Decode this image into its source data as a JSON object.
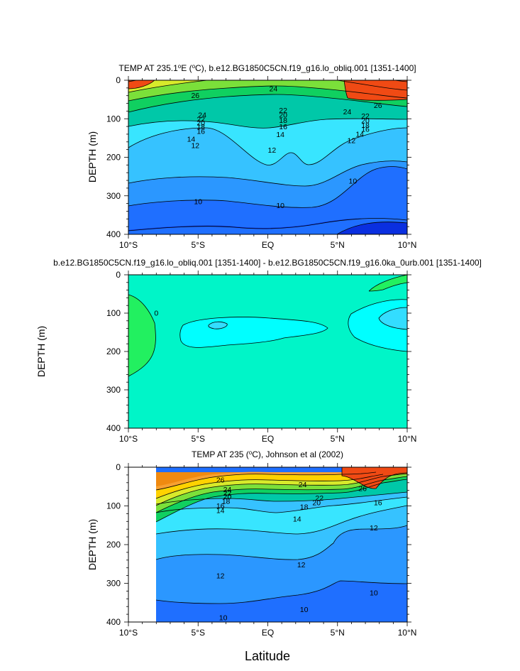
{
  "figure": {
    "x_axis_label": "Latitude",
    "colors": {
      "c_lt10": "#0a2fe0",
      "c_10_11": "#1f6fff",
      "c_11_12": "#2b97ff",
      "c_12_13": "#36c2ff",
      "c_13_14": "#38e5ff",
      "c_14_16": "#00c8a8",
      "c_16_18": "#10d060",
      "c_18_20": "#7be03a",
      "c_20_22": "#d8ea2b",
      "c_22_24": "#ffd200",
      "c_24_26": "#f8a030",
      "c_26_28": "#f08a10",
      "c_gt28": "#f04a14",
      "diff_base": "#00f5c8",
      "diff_neg1": "#00ffff",
      "diff_neg2": "#33ddff",
      "diff_pos": "#22f060",
      "contour": "#000000"
    }
  },
  "chart_data": [
    {
      "type": "contour",
      "title": "TEMP AT 235.1°E (°C), b.e12.BG1850C5CN.f19_g16.lo_obliq.001 [1351-1400]",
      "title_parts": {
        "pre": "TEMP AT 235.1",
        "sup1": "o",
        "mid": "E (",
        "sup2": "o",
        "post": "C), b.e12.BG1850C5CN.f19_g16.lo_obliq.001 [1351-1400]"
      },
      "xlabel": "",
      "ylabel": "DEPTH (m)",
      "xlim": [
        -10,
        10
      ],
      "ylim": [
        0,
        400
      ],
      "x_ticks": [
        -10,
        -5,
        0,
        5,
        10
      ],
      "x_tick_labels": [
        "10°S",
        "5°S",
        "EQ",
        "5°N",
        "10°N"
      ],
      "y_ticks": [
        0,
        100,
        200,
        300,
        400
      ],
      "y_tick_labels": [
        "0",
        "100",
        "200",
        "300",
        "400"
      ],
      "contour_levels": [
        10,
        11,
        12,
        13,
        14,
        16,
        18,
        20,
        22,
        24,
        26,
        28
      ],
      "contour_labels": [
        {
          "text": "26",
          "lat": -5.2,
          "depth": 40
        },
        {
          "text": "24",
          "lat": 0.4,
          "depth": 22
        },
        {
          "text": "26",
          "lat": 7.9,
          "depth": 65
        },
        {
          "text": "24",
          "lat": -4.7,
          "depth": 90
        },
        {
          "text": "22",
          "lat": -4.8,
          "depth": 101
        },
        {
          "text": "20",
          "lat": -4.8,
          "depth": 111
        },
        {
          "text": "18",
          "lat": -4.8,
          "depth": 121
        },
        {
          "text": "16",
          "lat": -4.8,
          "depth": 133
        },
        {
          "text": "14",
          "lat": -5.5,
          "depth": 153
        },
        {
          "text": "12",
          "lat": -5.2,
          "depth": 170
        },
        {
          "text": "22",
          "lat": 1.1,
          "depth": 78
        },
        {
          "text": "20",
          "lat": 1.1,
          "depth": 90
        },
        {
          "text": "18",
          "lat": 1.1,
          "depth": 104
        },
        {
          "text": "16",
          "lat": 1.1,
          "depth": 121
        },
        {
          "text": "14",
          "lat": 0.9,
          "depth": 141
        },
        {
          "text": "12",
          "lat": 0.3,
          "depth": 182
        },
        {
          "text": "24",
          "lat": 5.7,
          "depth": 82
        },
        {
          "text": "22",
          "lat": 7.0,
          "depth": 93
        },
        {
          "text": "20",
          "lat": 7.0,
          "depth": 105
        },
        {
          "text": "18",
          "lat": 7.0,
          "depth": 117
        },
        {
          "text": "16",
          "lat": 7.0,
          "depth": 127
        },
        {
          "text": "14",
          "lat": 6.6,
          "depth": 140
        },
        {
          "text": "12",
          "lat": 6.0,
          "depth": 157
        },
        {
          "text": "10",
          "lat": -5.0,
          "depth": 315
        },
        {
          "text": "10",
          "lat": 0.9,
          "depth": 325
        },
        {
          "text": "10",
          "lat": 6.1,
          "depth": 262
        }
      ]
    },
    {
      "type": "contour",
      "title": "b.e12.BG1850C5CN.f19_g16.lo_obliq.001 [1351-1400] - b.e12.BG1850C5CN.f19_g16.0ka_0urb.001 [1351-1400]",
      "xlabel": "",
      "ylabel": "DEPTH (m)",
      "xlim": [
        -10,
        10
      ],
      "ylim": [
        0,
        400
      ],
      "x_ticks": [
        -10,
        -5,
        0,
        5,
        10
      ],
      "x_tick_labels": [
        "10°S",
        "5°S",
        "EQ",
        "5°N",
        "10°N"
      ],
      "y_ticks": [
        0,
        100,
        200,
        300,
        400
      ],
      "y_tick_labels": [
        "0",
        "100",
        "200",
        "300",
        "400"
      ],
      "contour_levels": [
        -2,
        -1,
        0,
        1
      ],
      "contour_labels": [
        {
          "text": "0",
          "lat": -8.0,
          "depth": 100
        }
      ]
    },
    {
      "type": "contour",
      "title": "TEMP AT 235 (°C), Johnson et al (2002)",
      "title_parts": {
        "pre": "TEMP AT 235 (",
        "sup1": "o",
        "post": "C), Johnson et al (2002)"
      },
      "xlabel": "Latitude",
      "ylabel": "DEPTH (m)",
      "xlim": [
        -10,
        10
      ],
      "ylim": [
        0,
        400
      ],
      "data_xlim": [
        -8,
        10
      ],
      "x_ticks": [
        -10,
        -5,
        0,
        5,
        10
      ],
      "x_tick_labels": [
        "10°S",
        "5°S",
        "EQ",
        "5°N",
        "10°N"
      ],
      "y_ticks": [
        0,
        100,
        200,
        300,
        400
      ],
      "y_tick_labels": [
        "0",
        "100",
        "200",
        "300",
        "400"
      ],
      "contour_levels": [
        10,
        11,
        12,
        13,
        14,
        16,
        18,
        20,
        22,
        24,
        26,
        28
      ],
      "contour_labels": [
        {
          "text": "26",
          "lat": -3.4,
          "depth": 33
        },
        {
          "text": "24",
          "lat": 2.5,
          "depth": 45
        },
        {
          "text": "26",
          "lat": 6.8,
          "depth": 55
        },
        {
          "text": "24",
          "lat": -2.9,
          "depth": 58
        },
        {
          "text": "22",
          "lat": -2.9,
          "depth": 67
        },
        {
          "text": "20",
          "lat": -2.9,
          "depth": 76
        },
        {
          "text": "18",
          "lat": -3.0,
          "depth": 88
        },
        {
          "text": "16",
          "lat": -3.4,
          "depth": 100
        },
        {
          "text": "14",
          "lat": -3.4,
          "depth": 112
        },
        {
          "text": "22",
          "lat": 3.7,
          "depth": 80
        },
        {
          "text": "20",
          "lat": 3.5,
          "depth": 92
        },
        {
          "text": "18",
          "lat": 2.6,
          "depth": 103
        },
        {
          "text": "14",
          "lat": 2.1,
          "depth": 134
        },
        {
          "text": "12",
          "lat": 7.6,
          "depth": 157
        },
        {
          "text": "16",
          "lat": 7.9,
          "depth": 92
        },
        {
          "text": "12",
          "lat": -3.4,
          "depth": 281
        },
        {
          "text": "12",
          "lat": 2.4,
          "depth": 252
        },
        {
          "text": "10",
          "lat": -3.2,
          "depth": 389
        },
        {
          "text": "10",
          "lat": 2.6,
          "depth": 368
        },
        {
          "text": "10",
          "lat": 7.6,
          "depth": 325
        }
      ]
    }
  ]
}
